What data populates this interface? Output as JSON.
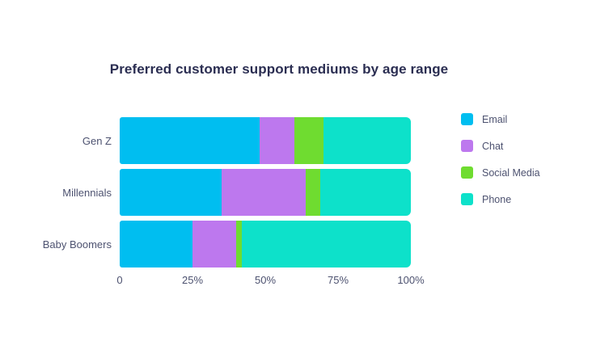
{
  "chart_data": {
    "type": "bar",
    "orientation": "horizontal",
    "stacked": true,
    "title": "Preferred customer support mediums by age range",
    "categories": [
      "Gen Z",
      "Millennials",
      "Baby Boomers"
    ],
    "series": [
      {
        "name": "Email",
        "color": "#00bef0",
        "values": [
          48,
          35,
          25
        ]
      },
      {
        "name": "Chat",
        "color": "#bd78ee",
        "values": [
          12,
          29,
          15
        ]
      },
      {
        "name": "Social Media",
        "color": "#6fdc30",
        "values": [
          10,
          5,
          2
        ]
      },
      {
        "name": "Phone",
        "color": "#0de1ca",
        "values": [
          30,
          31,
          58
        ]
      }
    ],
    "x_ticks": [
      "0",
      "25%",
      "50%",
      "75%",
      "100%"
    ],
    "xlim": [
      0,
      100
    ],
    "unit": "percent",
    "grid": false,
    "legend_position": "right"
  },
  "colors": {
    "background": "#ffffff",
    "title_text": "#2b2e52",
    "axis_text": "#4d5270"
  }
}
